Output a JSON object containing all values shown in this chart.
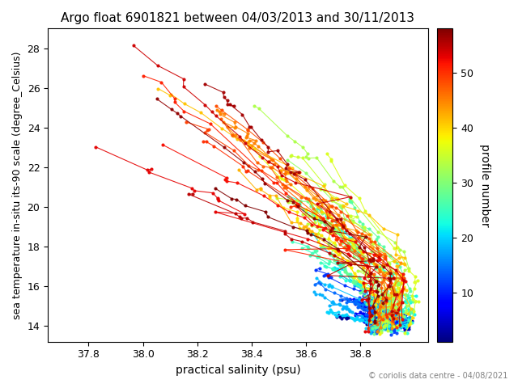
{
  "title": "Argo float 6901821 between 04/03/2013 and 30/11/2013",
  "xlabel": "practical salinity (psu)",
  "ylabel": "sea temperature in-situ its-90 scale (degree_Celsius)",
  "colorbar_label": "profile number",
  "copyright": "© coriolis data centre - 04/08/2021",
  "xlim": [
    37.65,
    39.05
  ],
  "ylim": [
    13.2,
    29.0
  ],
  "xticks": [
    37.8,
    38.0,
    38.2,
    38.4,
    38.6,
    38.8
  ],
  "yticks": [
    14,
    16,
    18,
    20,
    22,
    24,
    26,
    28
  ],
  "colormap": "jet",
  "n_profiles": 58,
  "cbar_ticks": [
    10,
    20,
    30,
    40,
    50
  ],
  "cbar_vmin": 1,
  "cbar_vmax": 58,
  "seed": 42
}
